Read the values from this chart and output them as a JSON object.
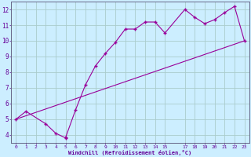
{
  "xlabel": "Windchill (Refroidissement éolien,°C)",
  "line1_x": [
    0,
    1,
    3,
    4,
    5,
    5,
    6,
    7,
    8,
    9,
    10,
    11,
    12,
    13,
    14,
    15,
    17,
    18,
    19,
    20,
    21,
    22,
    23
  ],
  "line1_y": [
    5.0,
    5.5,
    4.7,
    4.1,
    3.8,
    3.85,
    5.6,
    7.2,
    8.4,
    9.2,
    9.9,
    10.75,
    10.75,
    11.2,
    11.2,
    10.5,
    12.0,
    11.5,
    11.1,
    11.35,
    11.8,
    12.2,
    10.0
  ],
  "line2_x": [
    0,
    23
  ],
  "line2_y": [
    5.0,
    10.0
  ],
  "marker_color": "#990099",
  "line_color": "#990099",
  "bg_color": "#cceeff",
  "grid_color": "#aacccc",
  "axis_label_color": "#660099",
  "tick_label_color": "#660099",
  "ylim": [
    3.5,
    12.5
  ],
  "xlim": [
    -0.5,
    23.5
  ],
  "yticks": [
    4,
    5,
    6,
    7,
    8,
    9,
    10,
    11,
    12
  ],
  "xticks": [
    0,
    1,
    2,
    3,
    4,
    5,
    6,
    7,
    8,
    9,
    10,
    11,
    12,
    13,
    14,
    15,
    17,
    18,
    19,
    20,
    21,
    22,
    23
  ]
}
